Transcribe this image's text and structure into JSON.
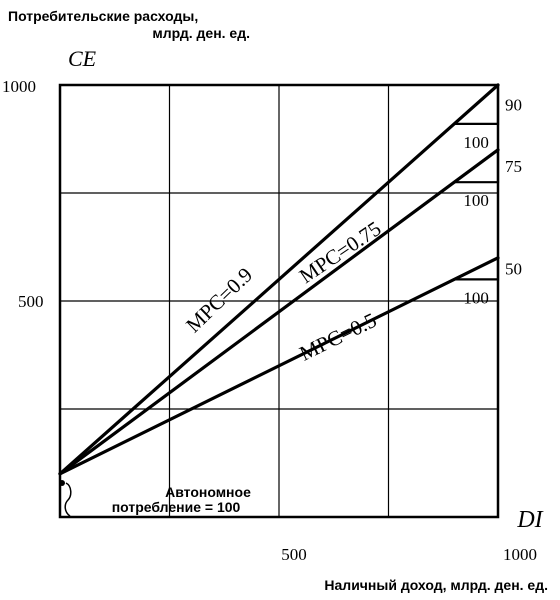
{
  "chart_data": {
    "type": "line",
    "ylabel_line1": "Потребительские расходы,",
    "ylabel_line2": "млрд. ден. ед.",
    "y_axis_symbol": "CE",
    "x_axis_symbol": "DI",
    "xlabel": "Наличный доход, млрд. ден. ед.",
    "xlim": [
      0,
      1000
    ],
    "ylim": [
      0,
      1000
    ],
    "x_ticks": [
      {
        "value": 500,
        "label": "500"
      },
      {
        "value": 1000,
        "label": "1000"
      }
    ],
    "y_ticks": [
      {
        "value": 500,
        "label": "500"
      },
      {
        "value": 1000,
        "label": "1000"
      }
    ],
    "grid": true,
    "autonomous_consumption": 100,
    "annotation_line1": "Автономное",
    "annotation_line2": "потребление = 100",
    "series": [
      {
        "name": "MPC=0.9",
        "mpc": 0.9,
        "x": [
          0,
          1000
        ],
        "y": [
          100,
          1000
        ],
        "step_run_label": "100",
        "step_rise_label": "90"
      },
      {
        "name": "MPC=0.75",
        "mpc": 0.75,
        "x": [
          0,
          1000
        ],
        "y": [
          100,
          850
        ],
        "step_run_label": "100",
        "step_rise_label": "75"
      },
      {
        "name": "MPC=0.5",
        "mpc": 0.5,
        "x": [
          0,
          1000
        ],
        "y": [
          100,
          600
        ],
        "step_run_label": "100",
        "step_rise_label": "50"
      }
    ]
  }
}
